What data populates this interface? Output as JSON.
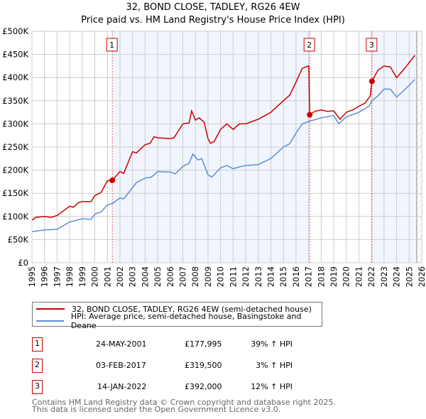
{
  "title_line1": "32, BOND CLOSE, TADLEY, RG26 4EW",
  "title_line2": "Price paid vs. HM Land Registry's House Price Index (HPI)",
  "chart_data": {
    "type": "line",
    "xlim": [
      1995,
      2026
    ],
    "ylim": [
      0,
      500000
    ],
    "x_ticks": [
      "1995",
      "1996",
      "1997",
      "1998",
      "1999",
      "2000",
      "2001",
      "2002",
      "2003",
      "2004",
      "2005",
      "2006",
      "2007",
      "2008",
      "2009",
      "2010",
      "2011",
      "2012",
      "2013",
      "2014",
      "2015",
      "2016",
      "2017",
      "2018",
      "2019",
      "2020",
      "2021",
      "2022",
      "2023",
      "2024",
      "2025",
      "2026"
    ],
    "y_ticks": [
      {
        "v": 0,
        "label": "£0"
      },
      {
        "v": 50000,
        "label": "£50K"
      },
      {
        "v": 100000,
        "label": "£100K"
      },
      {
        "v": 150000,
        "label": "£150K"
      },
      {
        "v": 200000,
        "label": "£200K"
      },
      {
        "v": 250000,
        "label": "£250K"
      },
      {
        "v": 300000,
        "label": "£300K"
      },
      {
        "v": 350000,
        "label": "£350K"
      },
      {
        "v": 400000,
        "label": "£400K"
      },
      {
        "v": 450000,
        "label": "£450K"
      },
      {
        "v": 500000,
        "label": "£500K"
      }
    ],
    "grid": true,
    "shaded_periods": [
      [
        2001.39,
        2017.09
      ],
      [
        2022.04,
        2025.6
      ]
    ],
    "hatched_future_from": 2025.6,
    "series": [
      {
        "name": "32, BOND CLOSE, TADLEY, RG26 4EW (semi-detached house)",
        "color": "#cc0000",
        "x": [
          1995,
          1995.3,
          1996,
          1996.5,
          1997,
          1998,
          1998.3,
          1998.7,
          1999,
          1999.7,
          2000,
          2000.5,
          2001,
          2001.39,
          2002,
          2002.3,
          2003,
          2003.3,
          2004,
          2004.4,
          2004.7,
          2005,
          2006,
          2006.3,
          2007,
          2007.5,
          2007.7,
          2008,
          2008.3,
          2008.7,
          2009,
          2009.2,
          2009.5,
          2010,
          2010.5,
          2011,
          2011.5,
          2012,
          2012.5,
          2013,
          2014,
          2015,
          2015.5,
          2016,
          2016.5,
          2017,
          2017.02,
          2017.09,
          2017.5,
          2018,
          2018.5,
          2019,
          2019.5,
          2020,
          2020.5,
          2021,
          2021.5,
          2021.9,
          2022.04,
          2022.5,
          2023,
          2023.5,
          2024,
          2024.5,
          2025,
          2025.3,
          2025.45
        ],
        "y": [
          92000,
          98000,
          100000,
          98000,
          102000,
          122000,
          120000,
          130000,
          132000,
          132000,
          145000,
          152000,
          177000,
          177995,
          197000,
          193000,
          240000,
          237000,
          255000,
          258000,
          272000,
          270000,
          268000,
          270000,
          300000,
          302000,
          328000,
          308000,
          313000,
          303000,
          268000,
          258000,
          262000,
          288000,
          300000,
          288000,
          300000,
          300000,
          305000,
          310000,
          325000,
          350000,
          362000,
          390000,
          420000,
          425000,
          425000,
          319500,
          327000,
          330000,
          327000,
          328000,
          310000,
          325000,
          330000,
          338000,
          345000,
          360000,
          392000,
          415000,
          425000,
          423000,
          400000,
          415000,
          432000,
          443000,
          448000
        ]
      },
      {
        "name": "HPI: Average price, semi-detached house, Basingstoke and Deane",
        "color": "#5b8fd4",
        "x": [
          1995,
          1996,
          1997,
          1998,
          1999,
          1999.7,
          2000,
          2000.5,
          2001,
          2001.4,
          2002,
          2002.3,
          2003,
          2003.3,
          2004,
          2004.5,
          2005,
          2006,
          2006.4,
          2007,
          2007.5,
          2007.8,
          2008.2,
          2008.5,
          2009,
          2009.3,
          2010,
          2010.5,
          2011,
          2011.5,
          2012,
          2013,
          2014,
          2015,
          2015.5,
          2016,
          2016.5,
          2017,
          2018,
          2019,
          2019.4,
          2020,
          2020.5,
          2021,
          2021.8,
          2022.04,
          2022.5,
          2023,
          2023.5,
          2024,
          2024.5,
          2025,
          2025.45
        ],
        "y": [
          67000,
          71000,
          72000,
          88000,
          95000,
          94000,
          105000,
          110000,
          125000,
          128000,
          140000,
          138000,
          162000,
          173000,
          183000,
          185000,
          197000,
          196000,
          192000,
          208000,
          215000,
          235000,
          222000,
          225000,
          190000,
          185000,
          205000,
          210000,
          203000,
          207000,
          210000,
          212000,
          225000,
          250000,
          257000,
          280000,
          300000,
          305000,
          313000,
          318000,
          300000,
          315000,
          320000,
          325000,
          338000,
          350000,
          360000,
          375000,
          375000,
          358000,
          370000,
          383000,
          396000
        ]
      }
    ],
    "sales": [
      {
        "id": "1",
        "x": 2001.39,
        "y": 177995
      },
      {
        "id": "2",
        "x": 2017.09,
        "y": 319500
      },
      {
        "id": "3",
        "x": 2022.04,
        "y": 392000
      }
    ]
  },
  "legend": {
    "property_label": "32, BOND CLOSE, TADLEY, RG26 4EW (semi-detached house)",
    "hpi_label": "HPI: Average price, semi-detached house, Basingstoke and Deane"
  },
  "transactions": [
    {
      "id": "1",
      "date": "24-MAY-2001",
      "price": "£177,995",
      "hpi": "39% ↑ HPI"
    },
    {
      "id": "2",
      "date": "03-FEB-2017",
      "price": "£319,500",
      "hpi": "3% ↑ HPI"
    },
    {
      "id": "3",
      "date": "14-JAN-2022",
      "price": "£392,000",
      "hpi": "12% ↑ HPI"
    }
  ],
  "footer_line1": "Contains HM Land Registry data © Crown copyright and database right 2025.",
  "footer_line2": "This data is licensed under the Open Government Licence v3.0."
}
